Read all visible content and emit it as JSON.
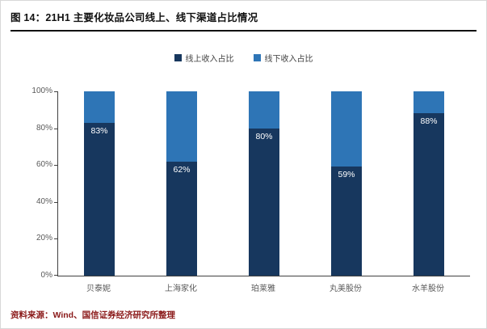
{
  "header": {
    "title": "图 14：21H1 主要化妆品公司线上、线下渠道占比情况"
  },
  "footer": {
    "source": "资料来源：Wind、国信证券经济研究所整理"
  },
  "colors": {
    "online_series": "#17375E",
    "offline_series": "#2E75B6",
    "source_text": "#8B1A1A",
    "axis": "#404040"
  },
  "chart_data": {
    "type": "bar",
    "stacked": true,
    "title": "21H1 主要化妆品公司线上、线下渠道占比情况",
    "categories": [
      "贝泰妮",
      "上海家化",
      "珀莱雅",
      "丸美股份",
      "水羊股份"
    ],
    "series": [
      {
        "name": "线上收入占比",
        "color": "#17375E",
        "values": [
          83,
          62,
          80,
          59,
          88
        ]
      },
      {
        "name": "线下收入占比",
        "color": "#2E75B6",
        "values": [
          17,
          38,
          20,
          41,
          12
        ]
      }
    ],
    "data_labels": {
      "series": "线上收入占比",
      "format": "percent",
      "color": "#ffffff"
    },
    "ylim": [
      0,
      100
    ],
    "yticks": [
      "0%",
      "20%",
      "40%",
      "60%",
      "80%",
      "100%"
    ],
    "grid": false,
    "legend_position": "top"
  }
}
